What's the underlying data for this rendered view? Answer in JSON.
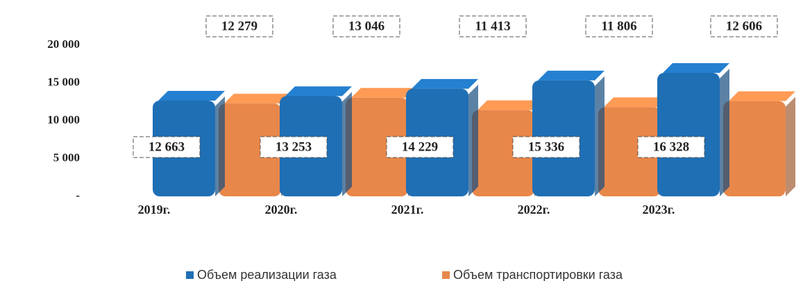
{
  "chart_data": {
    "type": "bar",
    "categories": [
      "2019г.",
      "2020г.",
      "2021г.",
      "2022г.",
      "2023г."
    ],
    "series": [
      {
        "name": "Объем реализации газа",
        "color": "#1f6fb5",
        "values": [
          12663,
          13253,
          14229,
          15336,
          16328
        ],
        "value_labels": [
          "12 663",
          "13 253",
          "14 229",
          "15 336",
          "16 328"
        ]
      },
      {
        "name": "Объем транспортировки газа",
        "color": "#e8874a",
        "values": [
          12279,
          13046,
          11413,
          11806,
          12606
        ],
        "value_labels": [
          "12 279",
          "13 046",
          "11 413",
          "11 806",
          "12 606"
        ]
      }
    ],
    "ylim": [
      0,
      20000
    ],
    "yticks": [
      {
        "value": 0,
        "label": "-"
      },
      {
        "value": 5000,
        "label": "5 000"
      },
      {
        "value": 10000,
        "label": "10 000"
      },
      {
        "value": 15000,
        "label": "15 000"
      },
      {
        "value": 20000,
        "label": "20 000"
      }
    ],
    "legend": "bottom"
  }
}
